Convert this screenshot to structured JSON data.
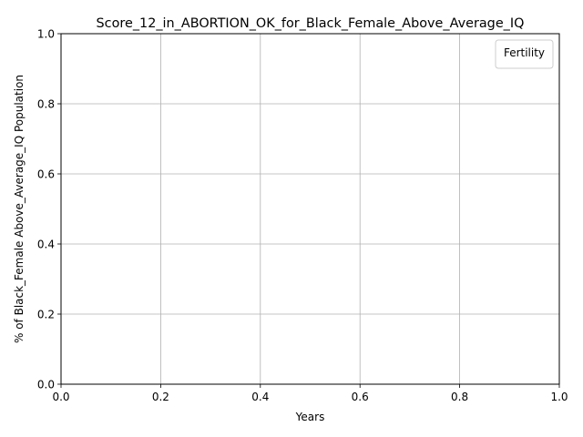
{
  "chart_data": {
    "type": "line",
    "title": "Score_12_in_ABORTION_OK_for_Black_Female_Above_Average_IQ",
    "xlabel": "Years",
    "ylabel": "% of Black_Female Above_Average_IQ Population",
    "xlim": [
      0.0,
      1.0
    ],
    "ylim": [
      0.0,
      1.0
    ],
    "x_ticks": [
      "0.0",
      "0.2",
      "0.4",
      "0.6",
      "0.8",
      "1.0"
    ],
    "y_ticks": [
      "0.0",
      "0.2",
      "0.4",
      "0.6",
      "0.8",
      "1.0"
    ],
    "grid": true,
    "legend": {
      "title": "Fertility",
      "placement": "top-right",
      "entries": []
    },
    "series": []
  },
  "colors": {
    "grid": "#b0b0b0",
    "axes": "#000000",
    "legend_border": "#cccccc",
    "background": "#ffffff"
  }
}
